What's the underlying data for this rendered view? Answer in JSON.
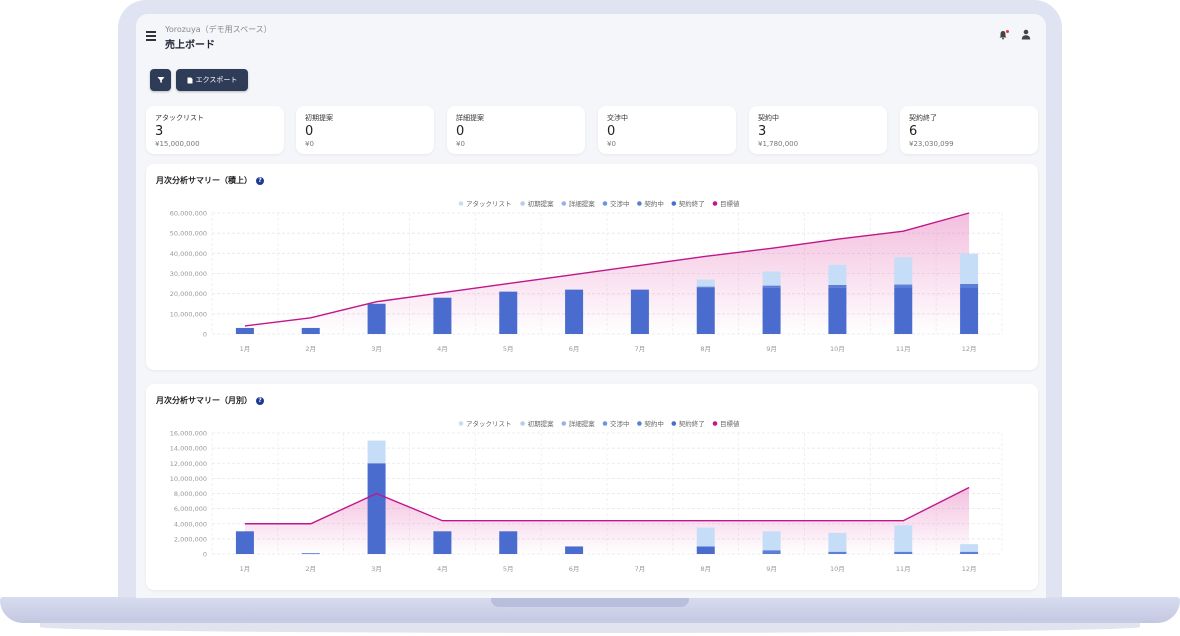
{
  "header": {
    "tenant": "Yorozuya（デモ用スペース）",
    "title": "売上ボード"
  },
  "toolbar": {
    "filter_icon": "filter-icon",
    "export_label": "エクスポート",
    "export_icon": "file-icon"
  },
  "header_icons": [
    "bell-icon",
    "user-icon"
  ],
  "stats": [
    {
      "label": "アタックリスト",
      "count": "3",
      "amount": "¥15,000,000"
    },
    {
      "label": "初期提案",
      "count": "0",
      "amount": "¥0"
    },
    {
      "label": "詳細提案",
      "count": "0",
      "amount": "¥0"
    },
    {
      "label": "交渉中",
      "count": "0",
      "amount": "¥0"
    },
    {
      "label": "契約中",
      "count": "3",
      "amount": "¥1,780,000"
    },
    {
      "label": "契約終了",
      "count": "6",
      "amount": "¥23,030,099"
    }
  ],
  "colors": {
    "アタックリスト": "#c6ddf8",
    "初期提案": "#b9cdea",
    "詳細提案": "#97b4e3",
    "交渉中": "#6f93dc",
    "契約中": "#5b7fd6",
    "契約終了": "#4a6ccf",
    "目標値": "#c0168c"
  },
  "chart_data": [
    {
      "type": "bar",
      "title": "月次分析サマリー（積上）",
      "categories": [
        "1月",
        "2月",
        "3月",
        "4月",
        "5月",
        "6月",
        "7月",
        "8月",
        "9月",
        "10月",
        "11月",
        "12月"
      ],
      "ylim": [
        0,
        60000000
      ],
      "yticks": [
        "0",
        "10,000,000",
        "20,000,000",
        "30,000,000",
        "40,000,000",
        "50,000,000",
        "60,000,000"
      ],
      "legend": [
        "アタックリスト",
        "初期提案",
        "詳細提案",
        "交渉中",
        "契約中",
        "契約終了",
        "目標値"
      ],
      "series": [
        {
          "name": "アタックリスト",
          "values": [
            0,
            0,
            0,
            0,
            0,
            0,
            0,
            3500000,
            7000000,
            10000000,
            13500000,
            15000000
          ]
        },
        {
          "name": "契約中",
          "values": [
            0,
            0,
            0,
            0,
            0,
            0,
            0,
            500000,
            1000000,
            1300000,
            1500000,
            1780000
          ]
        },
        {
          "name": "契約終了",
          "values": [
            3000000,
            3000000,
            15000000,
            18000000,
            21000000,
            22000000,
            22000000,
            23000000,
            23000000,
            23000000,
            23030099,
            23030099
          ]
        }
      ],
      "target": [
        4000000,
        8000000,
        16000000,
        20500000,
        25000000,
        29500000,
        34000000,
        38500000,
        42500000,
        47000000,
        51000000,
        60000000
      ]
    },
    {
      "type": "bar",
      "title": "月次分析サマリー（月別）",
      "categories": [
        "1月",
        "2月",
        "3月",
        "4月",
        "5月",
        "6月",
        "7月",
        "8月",
        "9月",
        "10月",
        "11月",
        "12月"
      ],
      "ylim": [
        0,
        16000000
      ],
      "yticks": [
        "0",
        "2,000,000",
        "4,000,000",
        "6,000,000",
        "8,000,000",
        "10,000,000",
        "12,000,000",
        "14,000,000",
        "16,000,000"
      ],
      "legend": [
        "アタックリスト",
        "初期提案",
        "詳細提案",
        "交渉中",
        "契約中",
        "契約終了",
        "目標値"
      ],
      "series": [
        {
          "name": "アタックリスト",
          "values": [
            0,
            0,
            3000000,
            0,
            0,
            0,
            0,
            2500000,
            2500000,
            2500000,
            3500000,
            1000000
          ]
        },
        {
          "name": "契約中",
          "values": [
            0,
            0,
            0,
            0,
            0,
            0,
            0,
            0,
            500000,
            300000,
            300000,
            300000
          ]
        },
        {
          "name": "契約終了",
          "values": [
            3000000,
            100000,
            12000000,
            3000000,
            3000000,
            1000000,
            0,
            1000000,
            0,
            0,
            0,
            0
          ]
        }
      ],
      "target": [
        4000000,
        4000000,
        8000000,
        4400000,
        4400000,
        4400000,
        4400000,
        4400000,
        4400000,
        4400000,
        4400000,
        8800000
      ]
    }
  ]
}
